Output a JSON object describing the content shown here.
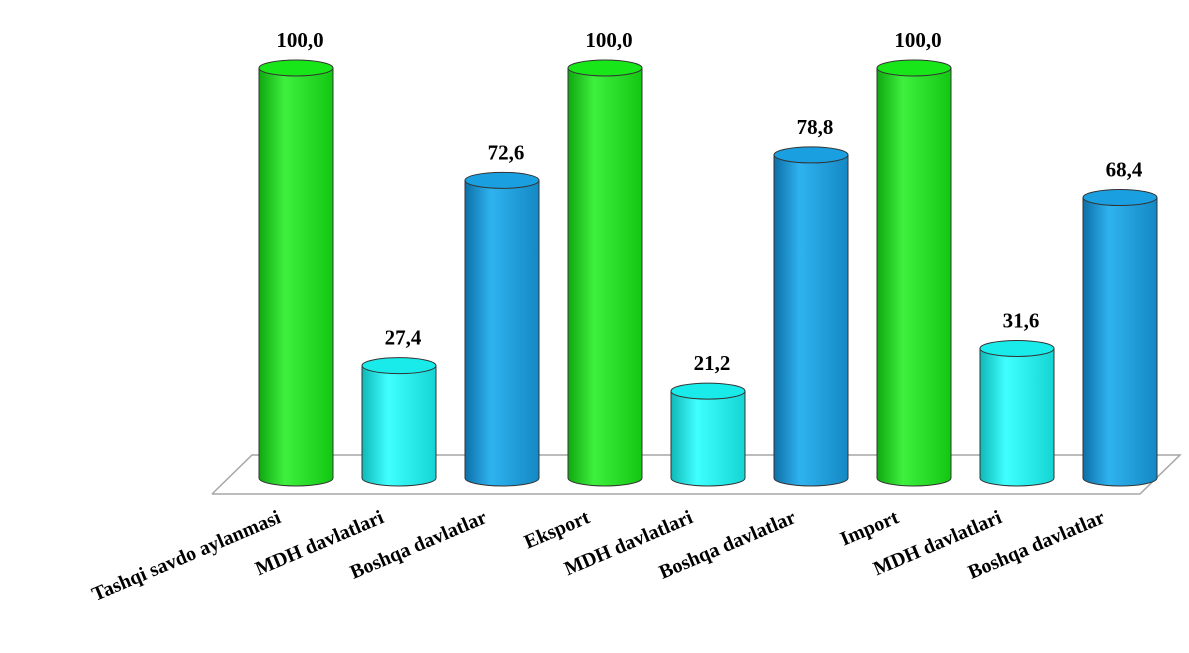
{
  "chart_data": {
    "type": "bar",
    "categories": [
      "Tashqi savdo aylanmasi",
      "MDH davlatlari",
      "Boshqa davlatlar",
      "Eksport",
      "MDH davlatlari",
      "Boshqa davlatlar",
      "Import",
      "MDH davlatlari",
      "Boshqa davlatlar"
    ],
    "values": [
      100.0,
      27.4,
      72.6,
      100.0,
      21.2,
      78.8,
      100.0,
      31.6,
      68.4
    ],
    "value_labels": [
      "100,0",
      "27,4",
      "72,6",
      "100,0",
      "21,2",
      "78,8",
      "100,0",
      "31,6",
      "68,4"
    ],
    "bar_colors": [
      "green",
      "cyan",
      "blue",
      "green",
      "cyan",
      "blue",
      "green",
      "cyan",
      "blue"
    ],
    "colors": {
      "green": "#19e619",
      "cyan": "#19ebeb",
      "blue": "#1a9fe0"
    },
    "ylim": [
      0,
      100
    ],
    "grid": false,
    "legend": "none",
    "style": "3d-cylinder"
  }
}
